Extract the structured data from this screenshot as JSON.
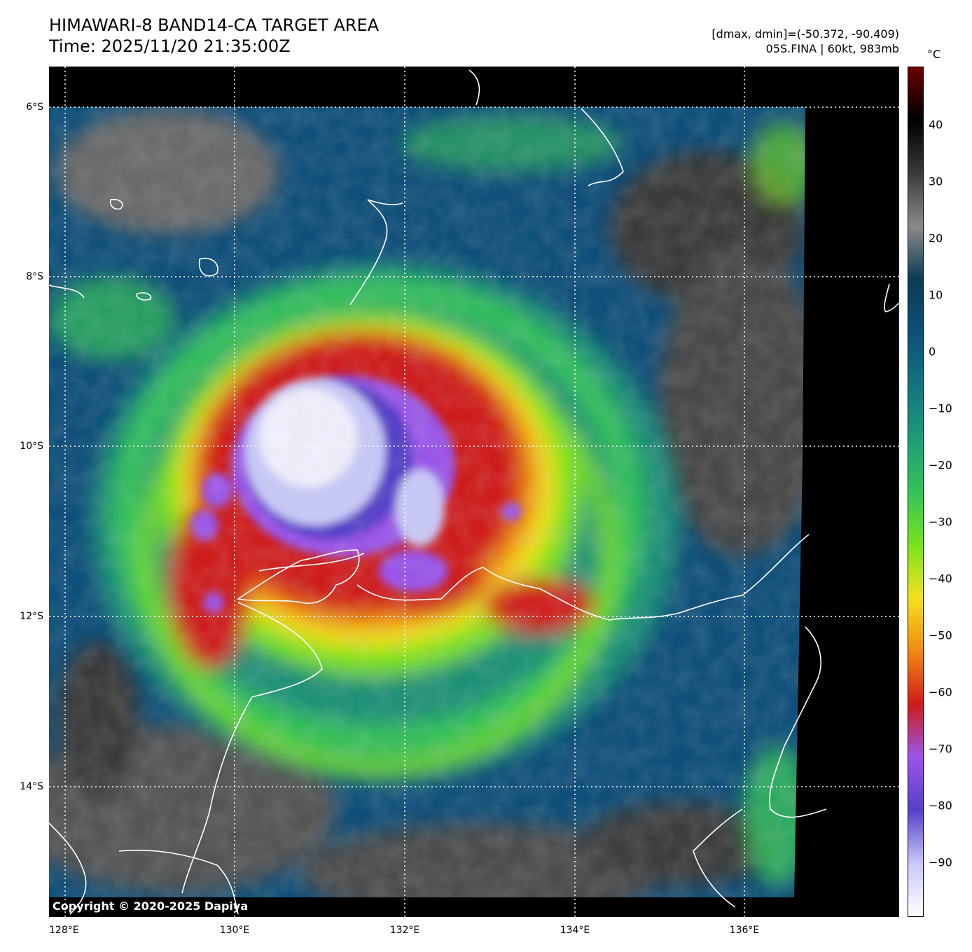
{
  "header": {
    "title": "HIMAWARI-8 BAND14-CA TARGET AREA",
    "time": "Time: 2025/11/20 21:35:00Z",
    "range": "[dmax, dmin]=(-50.372, -90.409)",
    "storm": "05S.FINA | 60kt, 983mb"
  },
  "map": {
    "lat_labels": [
      "6°S",
      "8°S",
      "10°S",
      "12°S",
      "14°S"
    ],
    "lon_labels": [
      "128°E",
      "130°E",
      "132°E",
      "134°E",
      "136°E"
    ],
    "copyright": "Copyright © 2020-2025 Dapiya",
    "gridline_color": "#ffffff",
    "coastline_color": "#ffffff"
  },
  "colorbar": {
    "unit": "°C",
    "ticks": [
      "40",
      "30",
      "20",
      "10",
      "0",
      "−10",
      "−20",
      "−30",
      "−40",
      "−50",
      "−60",
      "−70",
      "−80",
      "−90"
    ],
    "colors": [
      "#6b0000",
      "#000000",
      "#3a3a3a",
      "#8a8a8a",
      "#0b3b52",
      "#0f4f7a",
      "#12737f",
      "#1f9b77",
      "#35c25a",
      "#79e21e",
      "#f4e21b",
      "#f08a12",
      "#cf1b1b",
      "#9a55e8",
      "#5540c8",
      "#c8c8f8",
      "#ffffff"
    ]
  }
}
